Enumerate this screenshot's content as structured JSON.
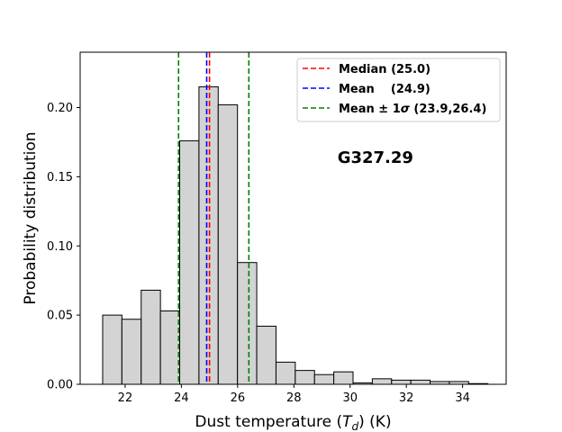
{
  "chart_data": {
    "type": "bar",
    "xlabel_main": "Dust temperature (",
    "xlabel_symbol": "T",
    "xlabel_sub": "d",
    "xlabel_tail": ") (K)",
    "ylabel": "Probability distribution",
    "xlim": [
      20.4,
      35.55
    ],
    "ylim": [
      0,
      0.24
    ],
    "xticks": [
      22,
      24,
      26,
      28,
      30,
      32,
      34
    ],
    "xtick_labels": [
      "22",
      "24",
      "26",
      "28",
      "30",
      "32",
      "34"
    ],
    "yticks": [
      0.0,
      0.05,
      0.1,
      0.15,
      0.2
    ],
    "ytick_labels": [
      "0.00",
      "0.05",
      "0.10",
      "0.15",
      "0.20"
    ],
    "bin_edges": [
      21.2,
      21.885,
      22.57,
      23.255,
      23.94,
      24.625,
      25.31,
      25.995,
      26.68,
      27.365,
      28.05,
      28.735,
      29.42,
      30.105,
      30.79,
      31.475,
      32.16,
      32.845,
      33.53,
      34.215,
      34.9
    ],
    "values": [
      0.05,
      0.047,
      0.068,
      0.053,
      0.176,
      0.215,
      0.202,
      0.088,
      0.042,
      0.016,
      0.01,
      0.007,
      0.009,
      0.001,
      0.004,
      0.003,
      0.003,
      0.002,
      0.002,
      0.0005
    ],
    "bar_color": "#d3d3d3",
    "bar_edge_color": "#000000",
    "lines": [
      {
        "name": "Median (25.0)",
        "x": 25.0,
        "color": "#ff0000",
        "style": "dashed"
      },
      {
        "name": "Mean    (24.9)",
        "x": 24.9,
        "color": "#0000ff",
        "style": "dashed"
      },
      {
        "name": "Mean ± 1σ (23.9,26.4)",
        "x": [
          23.9,
          26.4
        ],
        "color": "#008000",
        "style": "dashed"
      }
    ],
    "legend": {
      "placement": "top-right",
      "entries": [
        {
          "label": "Median (25.0)",
          "color": "#ff0000"
        },
        {
          "label": "Mean    (24.9)",
          "color": "#0000ff"
        },
        {
          "label_prefix": "Mean ± 1",
          "label_sigma": "σ",
          "label_suffix": " (23.9,26.4)",
          "color": "#008000"
        }
      ]
    },
    "annotation": {
      "text": "G327.29",
      "x": 30.9,
      "y": 0.16
    },
    "grid": false
  }
}
